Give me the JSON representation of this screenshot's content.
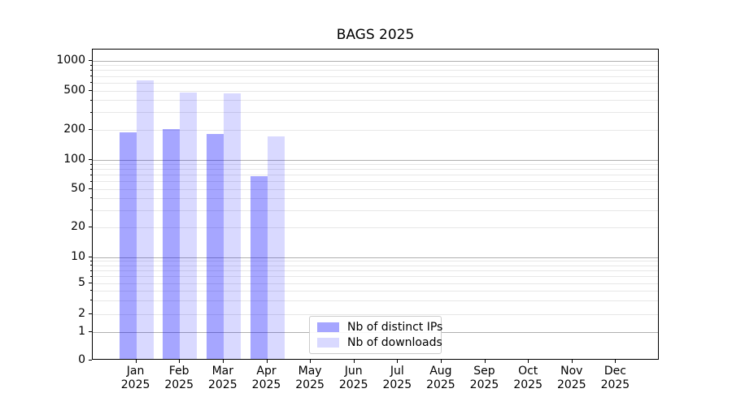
{
  "title": "BAGS 2025",
  "chart_data": {
    "type": "bar",
    "title": "BAGS 2025",
    "xlabel": "",
    "ylabel": "",
    "yscale": "symlog",
    "grid": true,
    "legend_position": "lower center",
    "ylim": [
      0,
      1300
    ],
    "yticks": [
      0,
      1,
      2,
      5,
      10,
      20,
      50,
      100,
      200,
      500,
      1000
    ],
    "categories": [
      "Jan 2025",
      "Feb 2025",
      "Mar 2025",
      "Apr 2025",
      "May 2025",
      "Jun 2025",
      "Jul 2025",
      "Aug 2025",
      "Sep 2025",
      "Oct 2025",
      "Nov 2025",
      "Dec 2025"
    ],
    "series": [
      {
        "name": "Nb of distinct IPs",
        "color": "#a6a6f4",
        "color_rgba": "rgba(0,0,255,0.35)",
        "values": [
          182,
          196,
          174,
          66,
          0,
          0,
          0,
          0,
          0,
          0,
          0,
          0
        ]
      },
      {
        "name": "Nb of downloads",
        "color": "#d9d9f9",
        "color_rgba": "rgba(0,0,255,0.15)",
        "values": [
          612,
          464,
          458,
          167,
          0,
          0,
          0,
          0,
          0,
          0,
          0,
          0
        ]
      }
    ]
  }
}
